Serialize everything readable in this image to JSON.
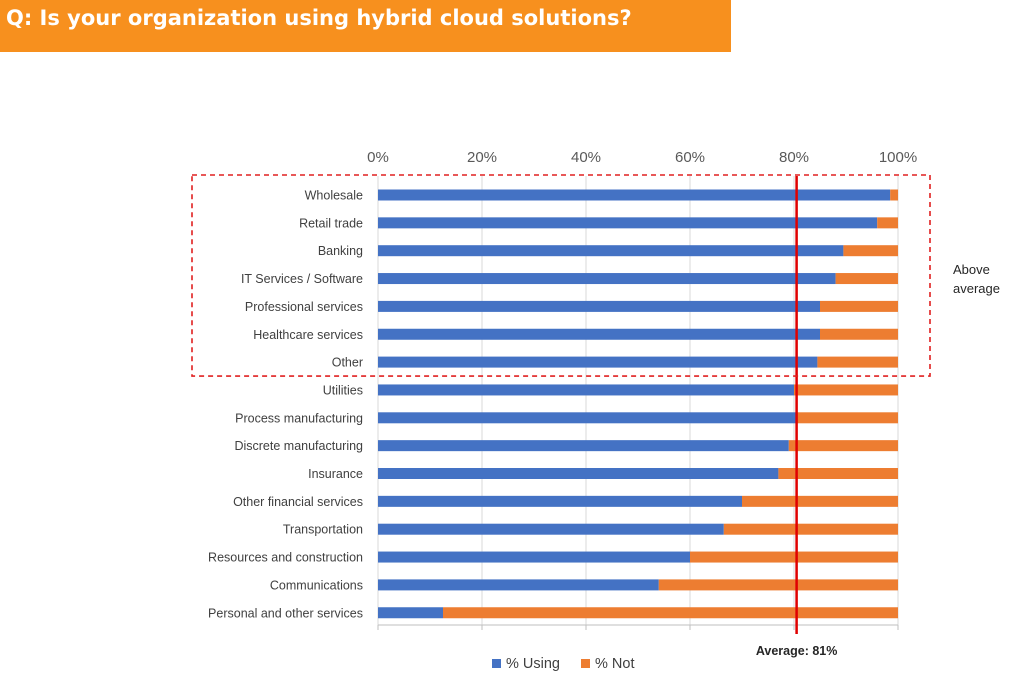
{
  "title": "Q: Is your organization using hybrid cloud solutions?",
  "colors": {
    "title_bg": "#f7901e",
    "using": "#4472c4",
    "not": "#ed7d31",
    "average_line": "#e00000",
    "highlight_box": "#e02020",
    "grid": "#d9d9d9"
  },
  "chart_data": {
    "type": "bar",
    "orientation": "horizontal",
    "stacked": true,
    "percent_stacked": true,
    "categories": [
      "Wholesale",
      "Retail trade",
      "Banking",
      "IT Services / Software",
      "Professional services",
      "Healthcare services",
      "Other",
      "Utilities",
      "Process manufacturing",
      "Discrete manufacturing",
      "Insurance",
      "Other financial services",
      "Transportation",
      "Resources and construction",
      "Communications",
      "Personal and other services"
    ],
    "series": [
      {
        "name": "% Using",
        "values": [
          98.5,
          96,
          89.5,
          88,
          85,
          85,
          84.5,
          80,
          80.5,
          79,
          77,
          70,
          66.5,
          60,
          54,
          12.5
        ]
      },
      {
        "name": "% Not",
        "values": [
          1.5,
          4,
          10.5,
          12,
          15,
          15,
          15.5,
          20,
          19.5,
          21,
          23,
          30,
          33.5,
          40,
          46,
          87.5
        ]
      }
    ],
    "x_ticks": [
      "0%",
      "20%",
      "40%",
      "60%",
      "80%",
      "100%"
    ],
    "xlim": [
      0,
      100
    ],
    "x_axis_position": "top",
    "grid": true,
    "legend_position": "bottom",
    "average": {
      "value": 80.5,
      "label": "Average: 81%"
    },
    "highlight": {
      "from_category": "Wholesale",
      "to_category": "Other",
      "label_lines": [
        "Above",
        "average"
      ]
    }
  }
}
